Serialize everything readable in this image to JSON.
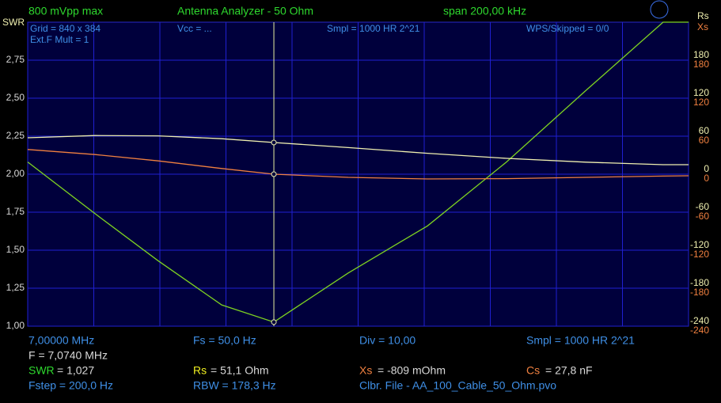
{
  "header": {
    "left": "800 mVpp max",
    "title": "Antenna Analyzer - 50 Ohm",
    "span": "span 200,00 kHz"
  },
  "plot_info": {
    "grid": "Grid = 840 x 384",
    "ext": "Ext.F Mult = 1",
    "vcc": "Vcc = ...",
    "smpl": "Smpl = 1000 HR 2^21",
    "wps": "WPS/Skipped  = 0/0"
  },
  "chart_data": {
    "type": "line",
    "y_label": "SWR",
    "y2_label": "Rs",
    "y3_label": "Xs",
    "x": [
      7.0,
      7.0204,
      7.0395,
      7.0587,
      7.0745,
      7.097,
      7.121,
      7.1449,
      7.1689,
      7.1923,
      7.2
    ],
    "xlim": [
      7.0,
      7.2
    ],
    "xticks": [
      7.0,
      7.02,
      7.04,
      7.06,
      7.08,
      7.1,
      7.12,
      7.14,
      7.16,
      7.18,
      7.2
    ],
    "ylim": [
      1,
      3
    ],
    "yticks": [
      {
        "value": 1,
        "label": "1,00"
      },
      {
        "value": 1.25,
        "label": "1,25"
      },
      {
        "value": 1.5,
        "label": "1,50"
      },
      {
        "value": 1.75,
        "label": "1,75"
      },
      {
        "value": 2,
        "label": "2,00"
      },
      {
        "value": 2.25,
        "label": "2,25"
      },
      {
        "value": 2.5,
        "label": "2,50"
      },
      {
        "value": 2.75,
        "label": "2,75"
      }
    ],
    "y2lim": [
      -240,
      240
    ],
    "y2ticks": [
      -240,
      -180,
      -120,
      -60,
      0,
      60,
      120,
      180
    ],
    "y3lim": [
      -240,
      240
    ],
    "y3ticks": [
      -240,
      -180,
      -120,
      -60,
      0,
      60,
      120,
      180
    ],
    "grid": true,
    "series": [
      {
        "name": "SWR",
        "color": "#7ed321",
        "values": [
          2.08,
          1.74,
          1.43,
          1.14,
          1.027,
          1.35,
          1.66,
          2.08,
          2.55,
          3.0,
          3.0
        ]
      },
      {
        "name": "Rs",
        "color": "#f0f0b0",
        "axis": "y2",
        "values": [
          57.5,
          61,
          60.5,
          56,
          50,
          42,
          33,
          25,
          19,
          15,
          15
        ]
      },
      {
        "name": "Xs",
        "color": "#f08040",
        "axis": "y3",
        "values": [
          39,
          31,
          21,
          9,
          0,
          -5,
          -7.5,
          -7,
          -5,
          -3,
          -2.5
        ]
      }
    ]
  },
  "footer": {
    "start": "7,00000 MHz",
    "fs": "Fs = 50,0 Hz",
    "div": "Div = 10,00",
    "smpl": "Smpl = 1000 HR  2^21",
    "f": "F = 7,0740 MHz",
    "swr": {
      "label": "SWR",
      "value": "= 1,027"
    },
    "rs": {
      "label": "Rs",
      "value": "= 51,1 Ohm"
    },
    "xs": {
      "label": "Xs",
      "value": "= -809 mOhm"
    },
    "cs": {
      "label": "Cs",
      "value": "= 27,8 nF"
    },
    "fstep": "Fstep = 200,0 Hz",
    "rbw": "RBW = 178,3 Hz",
    "file": "Clbr. File - AA_100_Cable_50_Ohm.pvo"
  }
}
